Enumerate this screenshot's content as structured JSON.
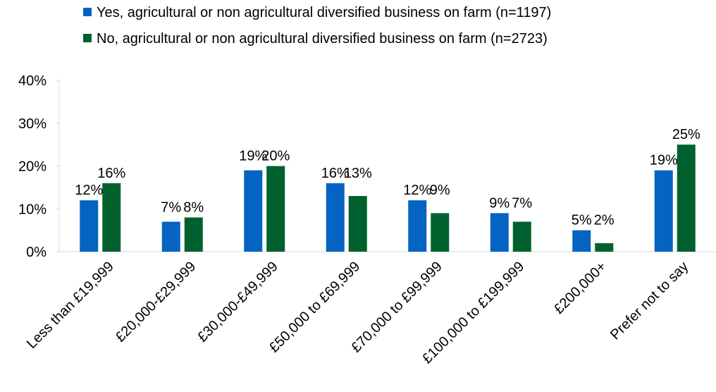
{
  "chart_data": {
    "type": "bar",
    "categories": [
      "Less than £19,999",
      "£20,000-£29,999",
      "£30,000-£49,999",
      "£50,000 to £69,999",
      "£70,000 to £99,999",
      "£100,000 to £199,999",
      "£200,000+",
      "Prefer not to say"
    ],
    "series": [
      {
        "name": "Yes, agricultural or non agricultural diversified business on farm (n=1197)",
        "color": "#0563C1",
        "values": [
          12,
          7,
          19,
          16,
          12,
          9,
          5,
          19
        ],
        "labels": [
          "12%",
          "7%",
          "19%",
          "16%",
          "12%",
          "9%",
          "5%",
          "19%"
        ]
      },
      {
        "name": "No, agricultural or non agricultural diversified business on farm (n=2723)",
        "color": "#00612E",
        "values": [
          16,
          8,
          20,
          13,
          9,
          7,
          2,
          25
        ],
        "labels": [
          "16%",
          "8%",
          "20%",
          "13%",
          "9%",
          "7%",
          "2%",
          "25%"
        ]
      }
    ],
    "y_ticks": [
      "0%",
      "10%",
      "20%",
      "30%",
      "40%"
    ],
    "ylim": [
      0,
      40
    ],
    "grid": false,
    "legend_position": "top-left",
    "title": "",
    "xlabel": "",
    "ylabel": ""
  }
}
